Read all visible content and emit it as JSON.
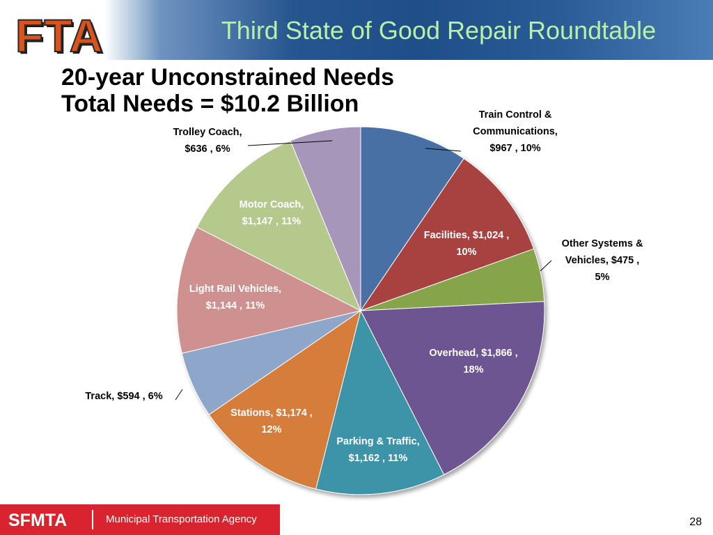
{
  "header": {
    "logo_text": "FTA",
    "title": "Third State of Good Repair Roundtable"
  },
  "page_title": {
    "line1": "20-year Unconstrained Needs",
    "line2": "Total Needs = $10.2 Billion"
  },
  "footer": {
    "logo_text": "SFMTA",
    "agency": "Municipal Transportation Agency",
    "page_number": "28"
  },
  "colors": {
    "header_title": "#b8f0a6",
    "footer_bar": "#d9232e",
    "fta_orange": "#d9531e"
  },
  "chart_data": {
    "type": "pie",
    "title": "",
    "units": "$ millions",
    "start": "12 o'clock, clockwise",
    "slices": [
      {
        "name": "Train Control & Communications",
        "value": 967,
        "percent": 10,
        "color": "#4a6fa5",
        "label_lines": [
          "Train Control &",
          "Communications,",
          "$967 , 10%"
        ]
      },
      {
        "name": "Facilities",
        "value": 1024,
        "percent": 10,
        "color": "#a8433f",
        "label_lines": [
          "Facilities,  $1,024 ,",
          "10%"
        ]
      },
      {
        "name": "Other Systems & Vehicles",
        "value": 475,
        "percent": 5,
        "color": "#86a44a",
        "label_lines": [
          "Other Systems &",
          "Vehicles,  $475 ,",
          "5%"
        ]
      },
      {
        "name": "Overhead",
        "value": 1866,
        "percent": 18,
        "color": "#6c5490",
        "label_lines": [
          "Overhead,  $1,866 ,",
          "18%"
        ]
      },
      {
        "name": "Parking & Traffic",
        "value": 1162,
        "percent": 11,
        "color": "#3d93a8",
        "label_lines": [
          "Parking & Traffic,",
          "$1,162 , 11%"
        ]
      },
      {
        "name": "Stations",
        "value": 1174,
        "percent": 12,
        "color": "#d77d3b",
        "label_lines": [
          "Stations,  $1,174 ,",
          "12%"
        ]
      },
      {
        "name": "Track",
        "value": 594,
        "percent": 6,
        "color": "#8ea6c9",
        "label_lines": [
          "Track,  $594 , 6%"
        ]
      },
      {
        "name": "Light Rail Vehicles",
        "value": 1144,
        "percent": 11,
        "color": "#cf918f",
        "label_lines": [
          "Light Rail Vehicles,",
          "$1,144 , 11%"
        ]
      },
      {
        "name": "Motor Coach",
        "value": 1147,
        "percent": 11,
        "color": "#b5c98c",
        "label_lines": [
          "Motor Coach,",
          "$1,147 , 11%"
        ]
      },
      {
        "name": "Trolley Coach",
        "value": 636,
        "percent": 6,
        "color": "#a696ba",
        "label_lines": [
          "Trolley Coach,",
          "$636 , 6%"
        ]
      }
    ]
  }
}
